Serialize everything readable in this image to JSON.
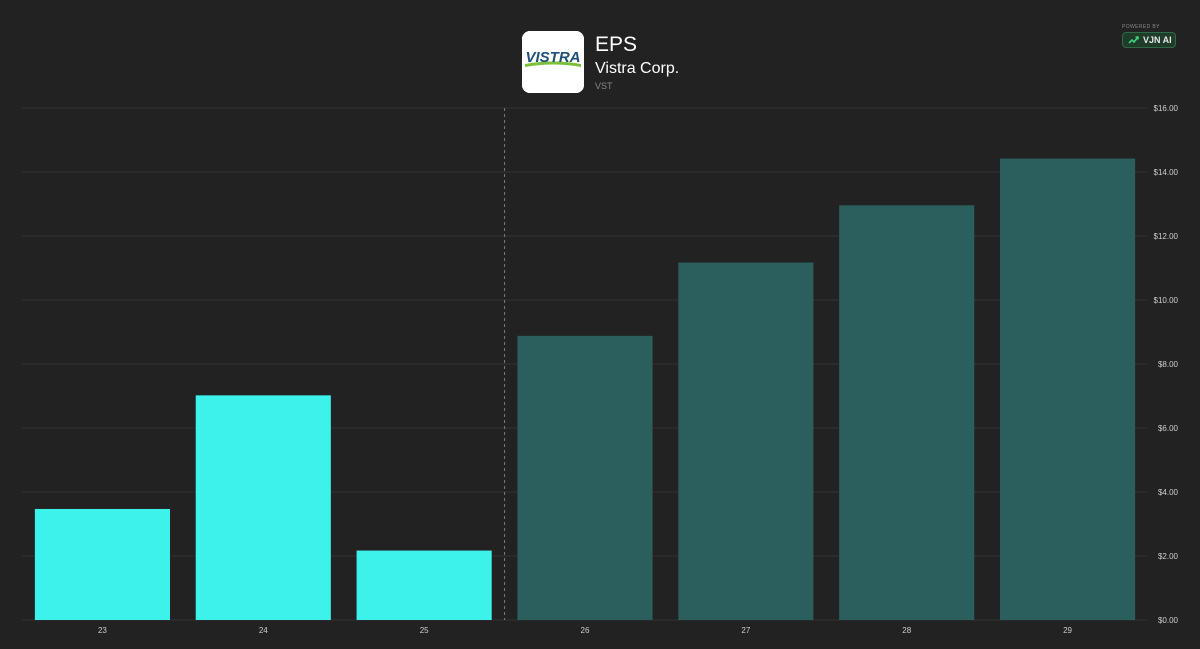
{
  "header": {
    "title": "EPS",
    "company": "Vistra Corp.",
    "ticker": "VST",
    "logo_text": "VISTRA"
  },
  "powered": {
    "label": "POWERED BY",
    "brand": "VJN AI"
  },
  "colors": {
    "background": "#222222",
    "actual_bar": "#3ef2ec",
    "estimate_bar": "#2a5f5d",
    "gridline": "#333333",
    "divider": "#7a7a7a",
    "tick_text": "#cfcfcf"
  },
  "chart_data": {
    "type": "bar",
    "title": "EPS",
    "categories": [
      "23",
      "24",
      "25",
      "26",
      "27",
      "28",
      "29"
    ],
    "values": [
      3.47,
      7.02,
      2.17,
      8.88,
      11.17,
      12.96,
      14.42
    ],
    "estimate_from_index": 3,
    "ylim": [
      0,
      16
    ],
    "yticks": [
      0,
      2,
      4,
      6,
      8,
      10,
      12,
      14,
      16
    ],
    "ytick_labels": [
      "$0.00",
      "$2.00",
      "$4.00",
      "$6.00",
      "$8.00",
      "$10.00",
      "$12.00",
      "$14.00",
      "$16.00"
    ],
    "y_axis_position": "right",
    "grid": true,
    "legend": "none"
  }
}
